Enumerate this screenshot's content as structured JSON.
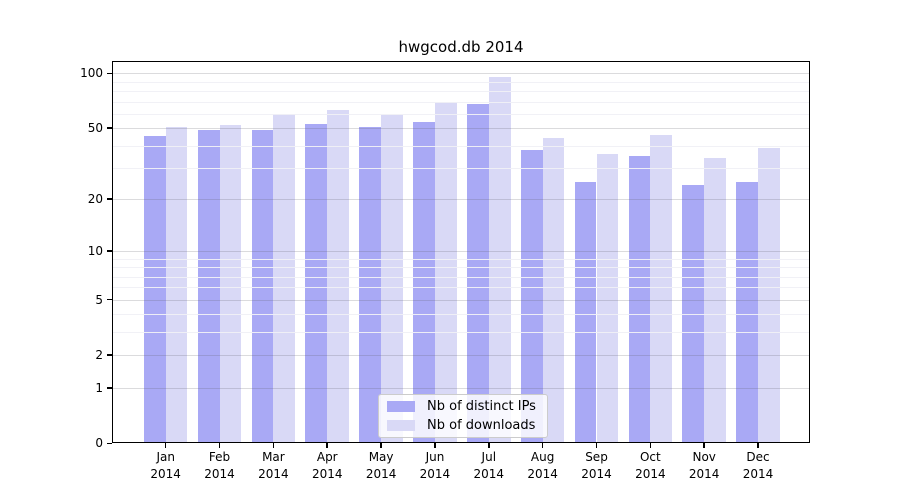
{
  "title": "hwgcod.db 2014",
  "chart_data": {
    "type": "bar",
    "title": "hwgcod.db 2014",
    "categories": [
      "Jan 2014",
      "Feb 2014",
      "Mar 2014",
      "Apr 2014",
      "May 2014",
      "Jun 2014",
      "Jul 2014",
      "Aug 2014",
      "Sep 2014",
      "Oct 2014",
      "Nov 2014",
      "Dec 2014"
    ],
    "series": [
      {
        "name": "Nb of distinct IPs",
        "color": "#a9a9f5",
        "values": [
          45,
          49,
          49,
          53,
          51,
          54,
          68,
          38,
          25,
          35,
          24,
          25
        ]
      },
      {
        "name": "Nb of downloads",
        "color": "#d9d9f6",
        "values": [
          51,
          52,
          60,
          63,
          59,
          70,
          95,
          44,
          36,
          46,
          34,
          39
        ]
      }
    ],
    "xlabel": "",
    "ylabel": "",
    "y_scale": "log10(1+v)",
    "ylim": [
      0,
      117
    ],
    "y_tick_labels": [
      "100",
      "50",
      "20",
      "10",
      "5",
      "2",
      "1",
      "0"
    ],
    "y_tick_values": [
      100,
      50,
      20,
      10,
      5,
      2,
      1,
      0
    ],
    "y_minor_values": [
      90,
      80,
      70,
      60,
      40,
      30,
      9,
      8,
      7,
      6,
      4,
      3
    ],
    "grid": "major and minor horizontal gridlines",
    "legend_position": "inside lower center"
  }
}
